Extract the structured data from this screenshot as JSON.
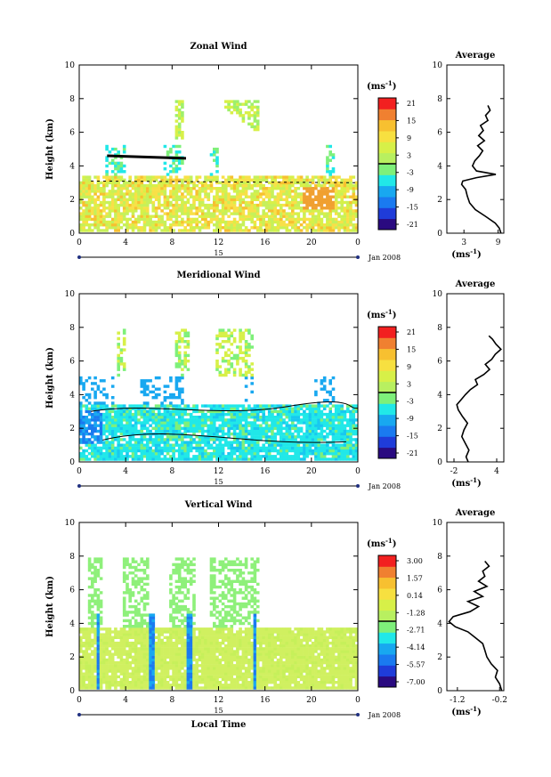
{
  "chart_data": [
    {
      "type": "heatmap",
      "title": "Zonal Wind",
      "ylabel": "Height (km)",
      "xlabel": "",
      "xticks": [
        "0",
        "4",
        "8",
        "12",
        "16",
        "20",
        "0"
      ],
      "yticks": [
        "0",
        "2",
        "4",
        "6",
        "8",
        "10"
      ],
      "xlim": [
        0,
        24
      ],
      "ylim": [
        0,
        10
      ],
      "date_day": "15",
      "date_label": "Jan 2008",
      "colorbar": {
        "unit": "(ms",
        "unit_exp": "-1",
        "unit_close": ")",
        "ticks": [
          "21",
          "15",
          "9",
          "3",
          "-3",
          "-9",
          "-15",
          "-21"
        ]
      },
      "average_profile": {
        "title": "Average",
        "xlabel": "(ms",
        "xlabel_exp": "-1",
        "xlabel_close": ")",
        "xticks": [
          "3",
          "9"
        ],
        "yticks": [
          "0",
          "2",
          "4",
          "6",
          "8",
          "10"
        ],
        "xlim": [
          0,
          10
        ],
        "heights": [
          0,
          0.3,
          0.6,
          1.0,
          1.4,
          1.8,
          2.2,
          2.6,
          2.9,
          3.1,
          3.3,
          3.5,
          3.7,
          4.0,
          4.3,
          4.6,
          4.9,
          5.2,
          5.5,
          5.8,
          6.1,
          6.4,
          6.7,
          7.0,
          7.3,
          7.6
        ],
        "values": [
          9.5,
          9.2,
          8.5,
          6.8,
          5.0,
          4.0,
          3.6,
          3.3,
          2.6,
          2.8,
          5.2,
          8.6,
          5.2,
          4.5,
          4.9,
          5.7,
          6.3,
          5.4,
          6.6,
          5.6,
          6.4,
          5.9,
          7.2,
          6.8,
          7.6,
          7.2
        ]
      }
    },
    {
      "type": "heatmap",
      "title": "Meridional Wind",
      "ylabel": "Height (km)",
      "xlabel": "",
      "xticks": [
        "0",
        "4",
        "8",
        "12",
        "16",
        "20",
        "0"
      ],
      "yticks": [
        "0",
        "2",
        "4",
        "6",
        "8",
        "10"
      ],
      "xlim": [
        0,
        24
      ],
      "ylim": [
        0,
        10
      ],
      "date_day": "15",
      "date_label": "Jan 2008",
      "colorbar": {
        "unit": "(ms",
        "unit_exp": "-1",
        "unit_close": ")",
        "ticks": [
          "21",
          "15",
          "9",
          "3",
          "-3",
          "-9",
          "-15",
          "-21"
        ]
      },
      "average_profile": {
        "title": "Average",
        "xlabel": "(ms",
        "xlabel_exp": "-1",
        "xlabel_close": ")",
        "xticks": [
          "-2",
          "4"
        ],
        "yticks": [
          "0",
          "2",
          "4",
          "6",
          "8",
          "10"
        ],
        "xlim": [
          -3,
          5
        ],
        "heights": [
          0,
          0.3,
          0.7,
          1.1,
          1.5,
          1.9,
          2.3,
          2.7,
          3.1,
          3.4,
          3.7,
          4.0,
          4.3,
          4.6,
          4.9,
          5.2,
          5.5,
          5.8,
          6.1,
          6.4,
          6.7,
          7.0,
          7.3,
          7.5
        ],
        "values": [
          0.0,
          -0.3,
          0.1,
          -0.4,
          -0.9,
          -0.6,
          -0.1,
          -0.8,
          -1.4,
          -1.6,
          -1.0,
          -0.4,
          0.3,
          1.3,
          1.0,
          2.2,
          3.0,
          2.4,
          3.3,
          3.8,
          4.6,
          3.9,
          3.4,
          2.9
        ]
      }
    },
    {
      "type": "heatmap",
      "title": "Vertical Wind",
      "ylabel": "Height (km)",
      "xlabel": "Local Time",
      "xticks": [
        "0",
        "4",
        "8",
        "12",
        "16",
        "20",
        "0"
      ],
      "yticks": [
        "0",
        "2",
        "4",
        "6",
        "8",
        "10"
      ],
      "xlim": [
        0,
        24
      ],
      "ylim": [
        0,
        10
      ],
      "date_day": "15",
      "date_label": "Jan 2008",
      "colorbar": {
        "unit": "(ms",
        "unit_exp": "-1",
        "unit_close": ")",
        "ticks": [
          "3.00",
          "1.57",
          "0.14",
          "-1.28",
          "-2.71",
          "-4.14",
          "-5.57",
          "-7.00"
        ]
      },
      "average_profile": {
        "title": "Average",
        "xlabel": "(ms",
        "xlabel_exp": "-1",
        "xlabel_close": ")",
        "xticks": [
          "-1.2",
          "-0.2"
        ],
        "yticks": [
          "0",
          "2",
          "4",
          "6",
          "8",
          "10"
        ],
        "xlim": [
          -1.45,
          -0.1
        ],
        "heights": [
          0,
          0.4,
          0.8,
          1.2,
          1.6,
          2.0,
          2.4,
          2.8,
          3.2,
          3.5,
          3.8,
          4.1,
          4.4,
          4.7,
          5.0,
          5.3,
          5.6,
          5.9,
          6.2,
          6.5,
          6.8,
          7.1,
          7.4,
          7.7
        ],
        "values": [
          -0.15,
          -0.2,
          -0.3,
          -0.25,
          -0.4,
          -0.5,
          -0.55,
          -0.6,
          -0.8,
          -0.95,
          -1.25,
          -1.4,
          -1.3,
          -0.9,
          -0.7,
          -0.95,
          -0.6,
          -0.8,
          -0.5,
          -0.7,
          -0.55,
          -0.6,
          -0.45,
          -0.55
        ]
      }
    }
  ]
}
